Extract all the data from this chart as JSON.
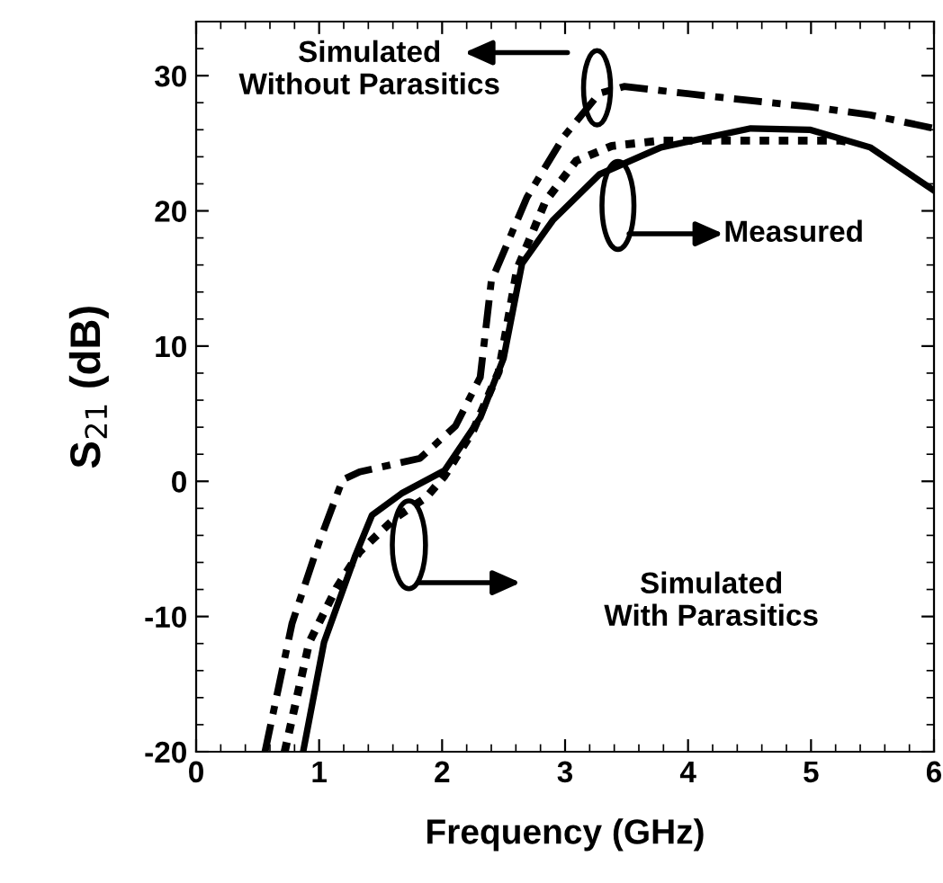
{
  "chart_data": {
    "type": "line",
    "xlabel": "Frequency (GHz)",
    "ylabel": "S$_{21}$ (dB)",
    "xlim": [
      0,
      6
    ],
    "ylim": [
      -20,
      34
    ],
    "xticks": [
      0,
      1,
      2,
      3,
      4,
      5,
      6
    ],
    "yticks": [
      -20,
      -10,
      0,
      10,
      20,
      30
    ],
    "grid": false,
    "legend": false,
    "series": [
      {
        "color": "#000000",
        "line_style": "dashdot",
        "x": [
          0.56,
          0.78,
          1.0,
          1.19,
          1.33,
          1.82,
          2.11,
          2.31,
          2.4,
          2.69,
          2.99,
          3.28,
          3.48,
          4.26,
          4.99,
          5.48,
          6.0
        ],
        "values": [
          -20,
          -10.5,
          -4.5,
          0.1,
          0.7,
          1.7,
          4.1,
          7.7,
          14.8,
          21,
          25.5,
          28.7,
          29.2,
          28.4,
          27.7,
          27.1,
          26.1
        ]
      },
      {
        "color": "#000000",
        "line_style": "dotted",
        "x": [
          0.72,
          0.92,
          1.14,
          1.33,
          1.62,
          1.87,
          2.02,
          2.25,
          2.46,
          2.61,
          2.84,
          3.09,
          3.38,
          3.78,
          4.74,
          5.24,
          5.35
        ],
        "values": [
          -20,
          -11.9,
          -7.9,
          -5.2,
          -2.7,
          -1.2,
          0.4,
          3.7,
          8.1,
          15.7,
          20.7,
          23.7,
          24.8,
          25.2,
          25.2,
          25.2,
          25.0
        ]
      },
      {
        "color": "#000000",
        "line_style": "solid",
        "x": [
          0.87,
          1.04,
          1.29,
          1.43,
          1.67,
          2.02,
          2.31,
          2.5,
          2.65,
          2.9,
          3.28,
          3.78,
          4.51,
          4.99,
          5.48,
          6.0
        ],
        "values": [
          -20,
          -11.9,
          -5.6,
          -2.5,
          -0.9,
          0.8,
          4.7,
          9.1,
          16.1,
          19.3,
          22.7,
          24.7,
          26.1,
          26.0,
          24.7,
          21.5
        ]
      }
    ],
    "annotations": [
      "Simulated\nWithout Parasitics",
      "Measured",
      "Simulated\nWith Parasitics"
    ]
  }
}
